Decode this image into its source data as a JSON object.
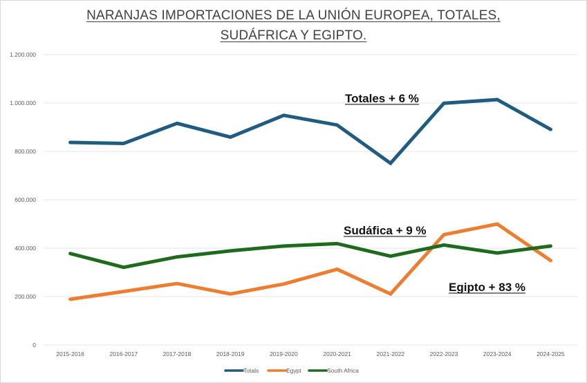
{
  "chart_data": {
    "type": "line",
    "title_lines": [
      "NARANJAS IMPORTACIONES DE LA UNIÓN EUROPEA, TOTALES,",
      "SUDÁFRICA Y EGIPTO."
    ],
    "xlabel": "",
    "ylabel": "",
    "categories": [
      "2015-2016",
      "2016-2017",
      "2017-2018",
      "2018-2019",
      "2019-2020",
      "2020-2021",
      "2021-2022",
      "2022-2023",
      "2023-2024",
      "2024-2025"
    ],
    "ylim": [
      0,
      1200000
    ],
    "yticks": [
      0,
      200000,
      400000,
      600000,
      800000,
      1000000,
      1200000
    ],
    "ytick_labels": [
      "0",
      "200.000",
      "400.000",
      "600.000",
      "800.000",
      "1.000.000",
      "1.200.000"
    ],
    "grid": true,
    "legend_position": "bottom",
    "series": [
      {
        "name": "Totals",
        "color": "#1f5c80",
        "values": [
          837000,
          833000,
          916000,
          859000,
          949000,
          909000,
          751000,
          999000,
          1014000,
          891000
        ]
      },
      {
        "name": "Egypt",
        "color": "#ed7d31",
        "values": [
          189000,
          221000,
          254000,
          211000,
          252000,
          313000,
          211000,
          456000,
          500000,
          349000
        ]
      },
      {
        "name": "South Africa",
        "color": "#1e6b1e",
        "values": [
          378000,
          321000,
          364000,
          389000,
          409000,
          419000,
          367000,
          413000,
          380000,
          409000
        ]
      }
    ],
    "annotations": [
      {
        "text": "Totales + 6 %",
        "series": "Totals",
        "near_category": "2021-2022",
        "anchor_value": 1000000
      },
      {
        "text": "Sudáfica  + 9 %",
        "series": "South Africa",
        "near_category": "2021-2022",
        "anchor_value": 470000
      },
      {
        "text": "Egipto + 83 %",
        "series": "Egypt",
        "near_category": "2023-2024",
        "anchor_value": 240000
      }
    ]
  }
}
